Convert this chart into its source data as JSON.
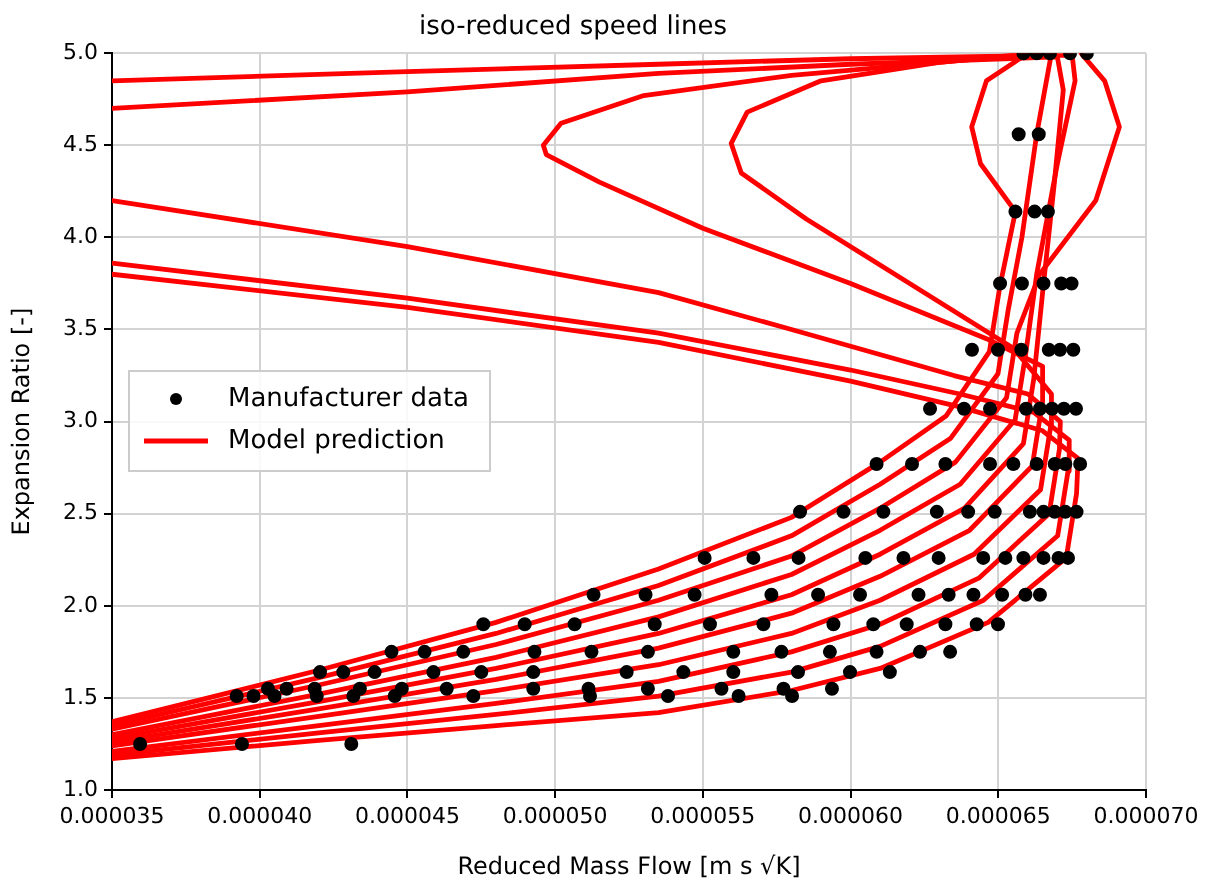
{
  "chart_data": {
    "type": "line",
    "title": "iso-reduced speed lines",
    "xlabel": "Reduced Mass Flow [m s √K]",
    "ylabel": "Expansion Ratio [-]",
    "xlim": [
      3.5e-05,
      7e-05
    ],
    "xticks": [
      {
        "value": 3.5e-05,
        "label": "0.000035"
      },
      {
        "value": 4e-05,
        "label": "0.000040"
      },
      {
        "value": 4.5e-05,
        "label": "0.000045"
      },
      {
        "value": 5e-05,
        "label": "0.000050"
      },
      {
        "value": 5.5e-05,
        "label": "0.000055"
      },
      {
        "value": 6e-05,
        "label": "0.000060"
      },
      {
        "value": 6.5e-05,
        "label": "0.000065"
      },
      {
        "value": 7e-05,
        "label": "0.000070"
      }
    ],
    "ylim": [
      1,
      5
    ],
    "yticks": [
      {
        "value": 1,
        "label": "1.0"
      },
      1.5,
      {
        "value": 2,
        "label": "2.0"
      },
      2.5,
      {
        "value": 3,
        "label": "3.0"
      },
      3.5,
      {
        "value": 4,
        "label": "4.0"
      },
      4.5,
      {
        "value": 5,
        "label": "5.0"
      }
    ],
    "grid": true,
    "legend": "left",
    "line_style": "solid",
    "series": [
      {
        "name": "Manufacturer data",
        "type": "scatter",
        "marker": "circle",
        "color": "#000000",
        "x": [
          6.585e-05,
          6.63e-05,
          6.675e-05,
          6.743e-05,
          6.8e-05,
          6.569e-05,
          6.637e-05,
          6.558e-05,
          6.623e-05,
          6.668e-05,
          6.506e-05,
          6.58e-05,
          6.653e-05,
          6.713e-05,
          6.748e-05,
          6.411e-05,
          6.499e-05,
          6.578e-05,
          6.671e-05,
          6.709e-05,
          6.754e-05,
          6.269e-05,
          6.384e-05,
          6.472e-05,
          6.594e-05,
          6.641e-05,
          6.682e-05,
          6.722e-05,
          6.763e-05,
          6.088e-05,
          6.208e-05,
          6.321e-05,
          6.472e-05,
          6.551e-05,
          6.63e-05,
          6.691e-05,
          6.727e-05,
          6.777e-05,
          5.829e-05,
          5.976e-05,
          6.111e-05,
          6.292e-05,
          6.398e-05,
          6.488e-05,
          6.607e-05,
          6.653e-05,
          6.691e-05,
          6.727e-05,
          6.765e-05,
          5.506e-05,
          5.671e-05,
          5.824e-05,
          6.05e-05,
          6.179e-05,
          6.298e-05,
          6.449e-05,
          6.524e-05,
          6.585e-05,
          6.653e-05,
          6.704e-05,
          6.736e-05,
          5.13e-05,
          5.306e-05,
          5.472e-05,
          5.732e-05,
          5.89e-05,
          6.032e-05,
          6.23e-05,
          6.332e-05,
          6.416e-05,
          6.513e-05,
          6.592e-05,
          6.641e-05,
          4.757e-05,
          4.897e-05,
          5.066e-05,
          5.337e-05,
          5.524e-05,
          5.705e-05,
          5.942e-05,
          6.077e-05,
          6.19e-05,
          6.321e-05,
          6.427e-05,
          6.499e-05,
          4.446e-05,
          4.558e-05,
          4.689e-05,
          4.93e-05,
          5.123e-05,
          5.314e-05,
          5.603e-05,
          5.766e-05,
          5.93e-05,
          6.088e-05,
          6.235e-05,
          6.337e-05,
          4.204e-05,
          4.283e-05,
          4.389e-05,
          4.588e-05,
          4.75e-05,
          4.926e-05,
          5.242e-05,
          5.434e-05,
          5.603e-05,
          5.822e-05,
          5.998e-05,
          6.133e-05,
          4.028e-05,
          4.091e-05,
          4.186e-05,
          4.339e-05,
          4.481e-05,
          4.633e-05,
          4.926e-05,
          5.113e-05,
          5.314e-05,
          5.563e-05,
          5.773e-05,
          5.937e-05,
          3.922e-05,
          3.979e-05,
          4.05e-05,
          4.193e-05,
          4.317e-05,
          4.457e-05,
          4.723e-05,
          5.118e-05,
          5.382e-05,
          5.621e-05,
          5.802e-05,
          3.595e-05,
          3.94e-05,
          4.31e-05
        ],
        "values": [
          5,
          5,
          5,
          5,
          5,
          4.56,
          4.56,
          4.14,
          4.14,
          4.14,
          3.75,
          3.75,
          3.75,
          3.75,
          3.75,
          3.39,
          3.39,
          3.39,
          3.39,
          3.39,
          3.39,
          3.07,
          3.07,
          3.07,
          3.07,
          3.07,
          3.07,
          3.07,
          3.07,
          2.77,
          2.77,
          2.77,
          2.77,
          2.77,
          2.77,
          2.77,
          2.77,
          2.77,
          2.51,
          2.51,
          2.51,
          2.51,
          2.51,
          2.51,
          2.51,
          2.51,
          2.51,
          2.51,
          2.51,
          2.26,
          2.26,
          2.26,
          2.26,
          2.26,
          2.26,
          2.26,
          2.26,
          2.26,
          2.26,
          2.26,
          2.26,
          2.06,
          2.06,
          2.06,
          2.06,
          2.06,
          2.06,
          2.06,
          2.06,
          2.06,
          2.06,
          2.06,
          2.06,
          1.9,
          1.9,
          1.9,
          1.9,
          1.9,
          1.9,
          1.9,
          1.9,
          1.9,
          1.9,
          1.9,
          1.9,
          1.75,
          1.75,
          1.75,
          1.75,
          1.75,
          1.75,
          1.75,
          1.75,
          1.75,
          1.75,
          1.75,
          1.75,
          1.64,
          1.64,
          1.64,
          1.64,
          1.64,
          1.64,
          1.64,
          1.64,
          1.64,
          1.64,
          1.64,
          1.64,
          1.55,
          1.55,
          1.55,
          1.55,
          1.55,
          1.55,
          1.55,
          1.55,
          1.55,
          1.55,
          1.55,
          1.55,
          1.51,
          1.51,
          1.51,
          1.51,
          1.51,
          1.51,
          1.51,
          1.51,
          1.51,
          1.51,
          1.51,
          1.25,
          1.25,
          1.25
        ]
      },
      {
        "name": "Model prediction",
        "type": "line",
        "marker": "none",
        "color": "#ff0000",
        "x": [
          3.5e-05,
          4.2e-05,
          4.8e-05,
          5.35e-05,
          5.8e-05,
          6.1e-05,
          6.466e-05,
          6.73e-05,
          6.765e-05,
          6.77e-05,
          6.65e-05,
          6.37e-05,
          6e-05,
          5.35e-05,
          4.5e-05,
          3.5e-05
        ],
        "values": [
          1.17,
          1.27,
          1.35,
          1.42,
          1.54,
          1.66,
          1.91,
          2.26,
          2.61,
          2.8,
          2.95,
          3.08,
          3.22,
          3.43,
          3.62,
          3.8
        ]
      },
      {
        "type": "line",
        "marker": "none",
        "color": "#ff0000",
        "x": [
          3.5e-05,
          4.2e-05,
          4.8e-05,
          5.35e-05,
          5.8e-05,
          6.1e-05,
          6.45e-05,
          6.701e-05,
          6.736e-05,
          6.74e-05,
          6.62e-05,
          6.37e-05,
          6e-05,
          5.35e-05,
          4.5e-05,
          3.5e-05
        ],
        "values": [
          1.19,
          1.31,
          1.41,
          1.51,
          1.64,
          1.78,
          2.03,
          2.38,
          2.73,
          2.9,
          3.05,
          3.15,
          3.28,
          3.48,
          3.67,
          3.86
        ]
      },
      {
        "type": "line",
        "marker": "none",
        "color": "#ff0000",
        "x": [
          3.5e-05,
          4.2e-05,
          4.8e-05,
          5.35e-05,
          5.8e-05,
          6.1e-05,
          6.434e-05,
          6.672e-05,
          6.707e-05,
          6.71e-05,
          6.6e-05,
          6.35e-05,
          5.8e-05,
          5.35e-05,
          4.5e-05,
          3.5e-05
        ],
        "values": [
          1.21,
          1.35,
          1.47,
          1.59,
          1.75,
          1.9,
          2.15,
          2.5,
          2.85,
          3,
          3.15,
          3.25,
          3.5,
          3.7,
          3.95,
          4.2
        ]
      },
      {
        "type": "line",
        "marker": "none",
        "color": "#ff0000",
        "x": [
          3.5e-05,
          4.2e-05,
          4.8e-05,
          5.35e-05,
          5.8e-05,
          6.1e-05,
          6.418e-05,
          6.643e-05,
          6.678e-05,
          6.68e-05,
          6.55e-05,
          6.2e-05,
          5.85e-05,
          5.63e-05,
          5.596e-05,
          5.65e-05,
          5.9e-05,
          6.3e-05,
          6.62e-05
        ],
        "values": [
          1.24,
          1.4,
          1.54,
          1.68,
          1.85,
          2.03,
          2.28,
          2.63,
          2.98,
          3.15,
          3.4,
          3.75,
          4.1,
          4.35,
          4.51,
          4.68,
          4.85,
          4.95,
          5
        ]
      },
      {
        "type": "line",
        "marker": "none",
        "color": "#ff0000",
        "x": [
          3.5e-05,
          4.2e-05,
          4.8e-05,
          5.35e-05,
          5.8e-05,
          6.1e-05,
          6.403e-05,
          6.615e-05,
          6.65e-05,
          6.65e-05,
          6.46e-05,
          6e-05,
          5.5e-05,
          5.15e-05,
          4.97e-05,
          4.96e-05,
          5.02e-05,
          5.3e-05,
          5.8e-05,
          6.3e-05,
          6.65e-05
        ],
        "values": [
          1.26,
          1.44,
          1.6,
          1.77,
          1.96,
          2.16,
          2.41,
          2.76,
          3.11,
          3.3,
          3.45,
          3.75,
          4.05,
          4.3,
          4.45,
          4.5,
          4.62,
          4.77,
          4.88,
          4.95,
          5
        ]
      },
      {
        "type": "line",
        "marker": "none",
        "color": "#ff0000",
        "x": [
          3.5e-05,
          4.2e-05,
          4.8e-05,
          5.35e-05,
          5.8e-05,
          6.1e-05,
          6.386e-05,
          6.585e-05,
          6.62e-05,
          6.65e-05,
          6.69e-05,
          6.72e-05,
          6.7e-05,
          6e-05,
          5.35e-05,
          4.5e-05,
          3.5e-05
        ],
        "values": [
          1.28,
          1.48,
          1.66,
          1.85,
          2.06,
          2.28,
          2.53,
          2.88,
          3.23,
          3.7,
          4.3,
          4.8,
          4.98,
          4.94,
          4.89,
          4.79,
          4.7
        ]
      },
      {
        "type": "line",
        "marker": "none",
        "color": "#ff0000",
        "x": [
          3.5e-05,
          4.2e-05,
          4.8e-05,
          5.35e-05,
          5.8e-05,
          6.1e-05,
          6.371e-05,
          6.557e-05,
          6.592e-05,
          6.63e-05,
          6.7e-05,
          6.76e-05,
          6.75e-05,
          6e-05,
          5.35e-05,
          4.5e-05,
          3.5e-05
        ],
        "values": [
          1.3,
          1.52,
          1.72,
          1.94,
          2.17,
          2.41,
          2.66,
          3.01,
          3.36,
          3.8,
          4.4,
          4.85,
          4.99,
          4.97,
          4.94,
          4.9,
          4.85
        ]
      },
      {
        "type": "line",
        "marker": "none",
        "color": "#ff0000",
        "x": [
          3.5e-05,
          4.2e-05,
          4.8e-05,
          5.35e-05,
          5.8e-05,
          6.1e-05,
          6.355e-05,
          6.528e-05,
          6.563e-05,
          6.64e-05,
          6.83e-05,
          6.91e-05,
          6.86e-05,
          6.78e-05
        ],
        "values": [
          1.33,
          1.57,
          1.79,
          2.03,
          2.27,
          2.53,
          2.78,
          3.13,
          3.48,
          3.8,
          4.2,
          4.6,
          4.85,
          5
        ]
      },
      {
        "type": "line",
        "marker": "none",
        "color": "#ff0000",
        "x": [
          3.5e-05,
          4.2e-05,
          4.8e-05,
          5.35e-05,
          5.8e-05,
          6.1e-05,
          6.339e-05,
          6.499e-05,
          6.534e-05,
          6.58e-05,
          6.63e-05,
          6.68e-05
        ],
        "values": [
          1.35,
          1.61,
          1.85,
          2.11,
          2.38,
          2.66,
          2.91,
          3.26,
          3.61,
          4,
          4.56,
          5
        ]
      },
      {
        "type": "line",
        "marker": "none",
        "color": "#ff0000",
        "x": [
          3.5e-05,
          4.2e-05,
          4.8e-05,
          5.35e-05,
          5.8e-05,
          6.1e-05,
          6.323e-05,
          6.47e-05,
          6.505e-05,
          6.558e-05,
          6.44e-05,
          6.41e-05,
          6.46e-05,
          6.6e-05
        ],
        "values": [
          1.37,
          1.65,
          1.91,
          2.2,
          2.48,
          2.78,
          3.03,
          3.38,
          3.73,
          4.14,
          4.4,
          4.6,
          4.85,
          5
        ]
      }
    ]
  }
}
